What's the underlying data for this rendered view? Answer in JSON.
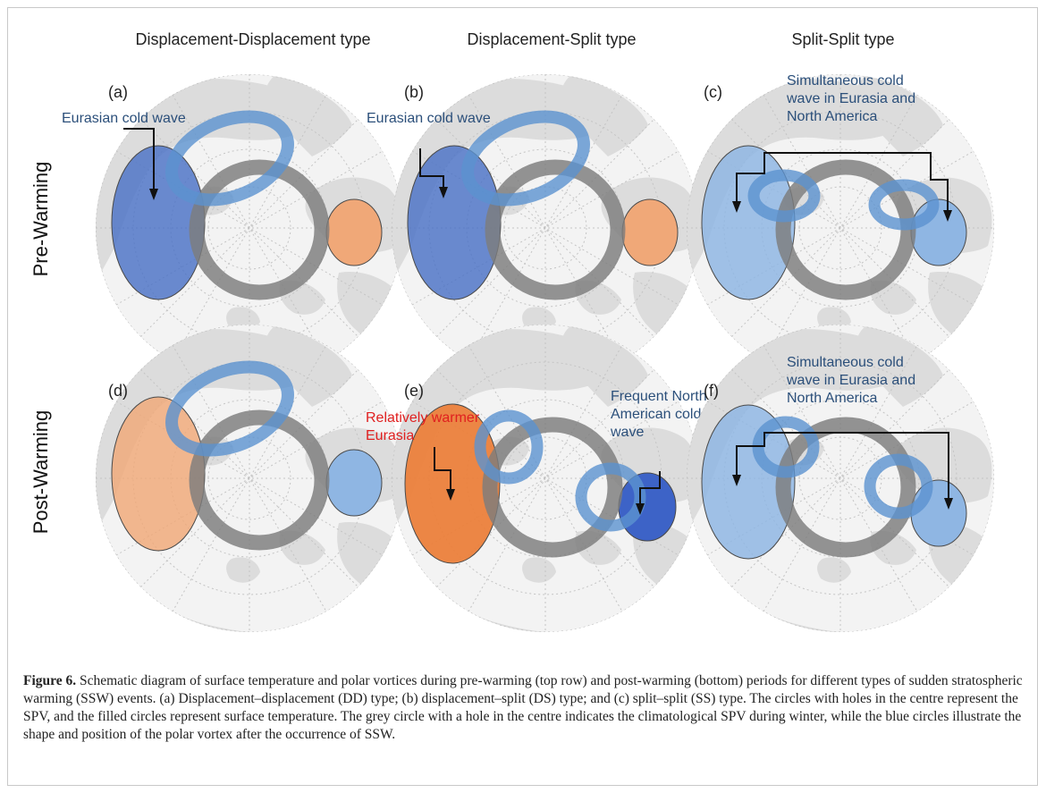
{
  "column_titles": [
    "Displacement-Displacement type",
    "Displacement-Split type",
    "Split-Split type"
  ],
  "row_labels": [
    "Pre-Warming",
    "Post-Warming"
  ],
  "panels": [
    {
      "letter": "(a)",
      "annotations": [
        {
          "text": "Eurasian cold wave",
          "color": "#2b4f7a"
        }
      ]
    },
    {
      "letter": "(b)",
      "annotations": [
        {
          "text": "Eurasian cold wave",
          "color": "#2b4f7a"
        }
      ]
    },
    {
      "letter": "(c)",
      "annotations": [
        {
          "text": "Simultaneous cold wave in Eurasia and North America",
          "color": "#2b4f7a"
        }
      ]
    },
    {
      "letter": "(d)",
      "annotations": []
    },
    {
      "letter": "(e)",
      "annotations": [
        {
          "text": "Relatively warmer Eurasia",
          "color": "#e02020"
        },
        {
          "text": "Frequent North American cold wave",
          "color": "#2b4f7a"
        }
      ]
    },
    {
      "letter": "(f)",
      "annotations": [
        {
          "text": "Simultaneous cold wave in Eurasia and North America",
          "color": "#2b4f7a"
        }
      ]
    }
  ],
  "colors": {
    "cold_strong": "#4a72c6",
    "cold_light": "#8fb6e3",
    "warm_light": "#f0a878",
    "warm_strong": "#ec7d36",
    "vortex_blue": "#5b92d0",
    "climatology_grey": "#7d7d7d",
    "land": "#dcdcdc"
  },
  "caption": {
    "label": "Figure 6.",
    "text": " Schematic diagram of surface temperature and polar vortices during pre-warming (top row) and post-warming (bottom) periods for different types of sudden stratospheric warming (SSW) events. (a) Displacement–displacement (DD) type; (b) displacement–split (DS) type; and (c) split–split (SS) type. The circles with holes in the centre represent the SPV, and the filled circles represent surface temperature. The grey circle with a hole in the centre indicates the climatological SPV during winter, while the blue circles illustrate the shape and position of the polar vortex after the occurrence of SSW."
  }
}
